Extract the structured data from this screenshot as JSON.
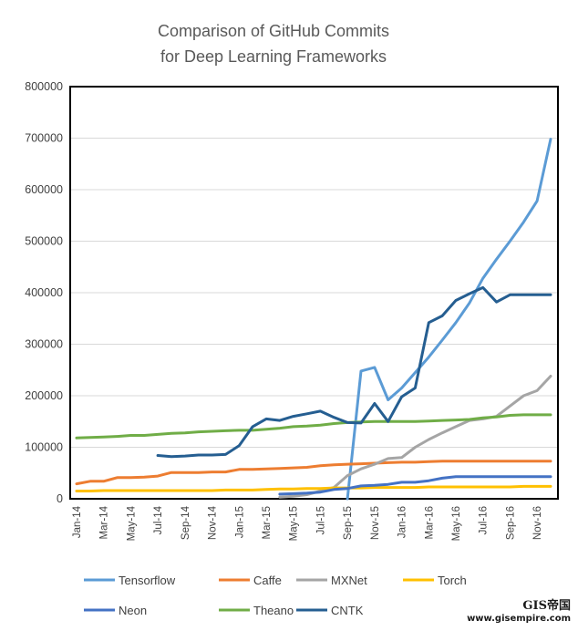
{
  "chart_data": {
    "type": "line",
    "title": "Comparison of GitHub Commits",
    "subtitle": "for Deep Learning Frameworks",
    "xlabel": "",
    "ylabel": "",
    "ylim": [
      0,
      800000
    ],
    "yticks": [
      "0",
      "100000",
      "200000",
      "300000",
      "400000",
      "500000",
      "600000",
      "700000",
      "800000"
    ],
    "categories": [
      "Jan-14",
      "Feb-14",
      "Mar-14",
      "Apr-14",
      "May-14",
      "Jun-14",
      "Jul-14",
      "Aug-14",
      "Sep-14",
      "Oct-14",
      "Nov-14",
      "Dec-14",
      "Jan-15",
      "Feb-15",
      "Mar-15",
      "Apr-15",
      "May-15",
      "Jun-15",
      "Jul-15",
      "Aug-15",
      "Sep-15",
      "Oct-15",
      "Nov-15",
      "Dec-15",
      "Jan-16",
      "Feb-16",
      "Mar-16",
      "Apr-16",
      "May-16",
      "Jun-16",
      "Jul-16",
      "Aug-16",
      "Sep-16",
      "Oct-16",
      "Nov-16",
      "Dec-16"
    ],
    "tick_labels": [
      "Jan-14",
      "Mar-14",
      "May-14",
      "Jul-14",
      "Sep-14",
      "Nov-14",
      "Jan-15",
      "Mar-15",
      "May-15",
      "Jul-15",
      "Sep-15",
      "Nov-15",
      "Jan-16",
      "Mar-16",
      "May-16",
      "Jul-16",
      "Sep-16",
      "Nov-16"
    ],
    "grid": "horizontal",
    "legend_position": "bottom",
    "series": [
      {
        "name": "Tensorflow",
        "color": "#5b9bd5",
        "values": [
          null,
          null,
          null,
          null,
          null,
          null,
          null,
          null,
          null,
          null,
          null,
          null,
          null,
          null,
          null,
          null,
          null,
          null,
          null,
          null,
          0,
          248000,
          255000,
          192000,
          215000,
          245000,
          275000,
          308000,
          342000,
          380000,
          428000,
          465000,
          500000,
          537000,
          578000,
          698000
        ]
      },
      {
        "name": "Caffe",
        "color": "#ed7d31",
        "values": [
          29000,
          34000,
          34000,
          41000,
          41000,
          42000,
          44000,
          51000,
          51000,
          51000,
          52000,
          52000,
          57000,
          57000,
          58000,
          59000,
          60000,
          61000,
          64000,
          66000,
          67000,
          68000,
          69000,
          70000,
          71000,
          71000,
          72000,
          73000,
          73000,
          73000,
          73000,
          73000,
          73000,
          73000,
          73000,
          73000
        ]
      },
      {
        "name": "MXNet",
        "color": "#a5a5a5",
        "values": [
          null,
          null,
          null,
          null,
          null,
          null,
          null,
          null,
          null,
          null,
          null,
          null,
          null,
          null,
          null,
          3000,
          5000,
          8000,
          15000,
          22000,
          45000,
          58000,
          67000,
          78000,
          80000,
          100000,
          115000,
          128000,
          140000,
          152000,
          155000,
          160000,
          180000,
          200000,
          210000,
          238000
        ]
      },
      {
        "name": "Torch",
        "color": "#ffc000",
        "values": [
          15000,
          15000,
          16000,
          16000,
          16000,
          16000,
          16000,
          16000,
          16000,
          16000,
          16000,
          17000,
          17000,
          17000,
          18000,
          19000,
          19000,
          20000,
          20000,
          21000,
          21000,
          21000,
          22000,
          22000,
          22000,
          22000,
          23000,
          23000,
          23000,
          23000,
          23000,
          23000,
          23000,
          24000,
          24000,
          24000
        ]
      },
      {
        "name": "Neon",
        "color": "#4472c4",
        "values": [
          null,
          null,
          null,
          null,
          null,
          null,
          null,
          null,
          null,
          null,
          null,
          null,
          null,
          null,
          null,
          9000,
          10000,
          11000,
          13000,
          18000,
          20000,
          25000,
          26000,
          28000,
          32000,
          32000,
          35000,
          40000,
          43000,
          43000,
          43000,
          43000,
          43000,
          43000,
          43000,
          43000
        ]
      },
      {
        "name": "Theano",
        "color": "#70ad47",
        "values": [
          118000,
          119000,
          120000,
          121000,
          123000,
          123000,
          125000,
          127000,
          128000,
          130000,
          131000,
          132000,
          133000,
          133000,
          135000,
          137000,
          140000,
          141000,
          143000,
          146000,
          148000,
          149000,
          150000,
          150000,
          150000,
          150000,
          151000,
          152000,
          153000,
          154000,
          157000,
          159000,
          162000,
          163000,
          163000,
          163000
        ]
      },
      {
        "name": "CNTK",
        "color": "#255e91",
        "values": [
          null,
          null,
          null,
          null,
          null,
          null,
          84000,
          82000,
          83000,
          85000,
          85000,
          86000,
          103000,
          140000,
          155000,
          152000,
          160000,
          165000,
          170000,
          158000,
          148000,
          147000,
          185000,
          150000,
          198000,
          215000,
          342000,
          355000,
          385000,
          398000,
          410000,
          382000,
          396000,
          396000,
          396000,
          396000
        ]
      }
    ]
  },
  "watermark": {
    "logo": "GIS帝国",
    "url": "www.gisempire.com"
  }
}
